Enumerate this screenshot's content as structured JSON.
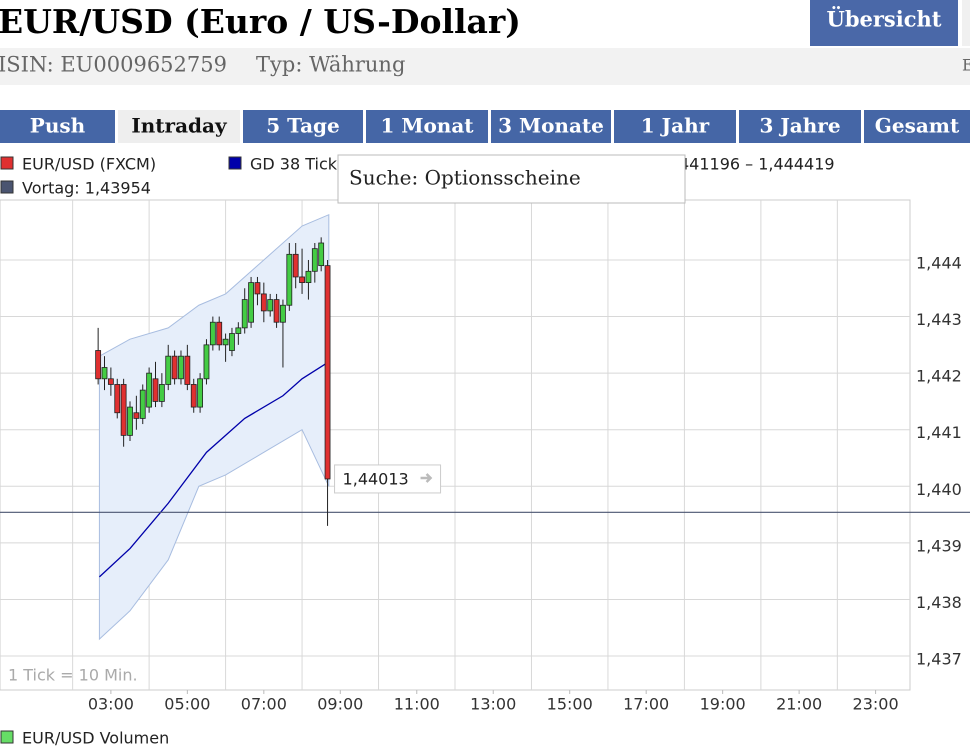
{
  "header": {
    "title": "EUR/USD (Euro / US-Dollar)",
    "button": "Übersicht",
    "isin": "ISIN: EU0009652759",
    "typ": "Typ: Währung",
    "cut": "E"
  },
  "tabs": [
    "Push",
    "Intraday",
    "5 Tage",
    "1 Monat",
    "3 Monate",
    "1 Jahr",
    "3 Jahre",
    "Gesamt"
  ],
  "active_tab": 1,
  "tooltip": "Suche: Optionsscheine",
  "chart_data": {
    "type": "candlestick",
    "series": [
      {
        "name": "EUR/USD (FXCM)",
        "color": "#e03030",
        "up_color": "#44cc44",
        "x": [
          2.6667,
          2.8333,
          3.0,
          3.1667,
          3.3333,
          3.5,
          3.6667,
          3.8333,
          4.0,
          4.1667,
          4.3333,
          4.5,
          4.6667,
          4.8333,
          5.0,
          5.1667,
          5.3333,
          5.5,
          5.6667,
          5.8333,
          6.0,
          6.1667,
          6.3333,
          6.5,
          6.6667,
          6.8333,
          7.0,
          7.1667,
          7.3333,
          7.5,
          7.6667,
          7.8333,
          8.0,
          8.1667,
          8.3333,
          8.5,
          8.6667
        ],
        "open": [
          1.4424,
          1.4419,
          1.4419,
          1.4418,
          1.4418,
          1.4409,
          1.4413,
          1.4412,
          1.4414,
          1.4419,
          1.4415,
          1.4418,
          1.4423,
          1.4419,
          1.4423,
          1.4418,
          1.4414,
          1.4419,
          1.4425,
          1.4429,
          1.4425,
          1.4424,
          1.4427,
          1.4428,
          1.4429,
          1.4436,
          1.4434,
          1.4431,
          1.4433,
          1.4429,
          1.4432,
          1.4441,
          1.4437,
          1.4436,
          1.4438,
          1.4439,
          1.4439
        ],
        "high": [
          1.4428,
          1.4423,
          1.4421,
          1.4419,
          1.4419,
          1.4415,
          1.4416,
          1.4418,
          1.4421,
          1.4422,
          1.442,
          1.4425,
          1.4424,
          1.4424,
          1.4425,
          1.4419,
          1.442,
          1.4426,
          1.443,
          1.443,
          1.4427,
          1.4428,
          1.4429,
          1.4435,
          1.4437,
          1.4437,
          1.4436,
          1.4434,
          1.4434,
          1.4433,
          1.4443,
          1.4443,
          1.4442,
          1.444,
          1.4443,
          1.4444,
          1.444
        ],
        "low": [
          1.4418,
          1.4417,
          1.4416,
          1.4412,
          1.4407,
          1.4408,
          1.441,
          1.4411,
          1.4413,
          1.4414,
          1.4414,
          1.4417,
          1.4418,
          1.4418,
          1.4417,
          1.4413,
          1.4413,
          1.4418,
          1.4424,
          1.4424,
          1.4422,
          1.4423,
          1.4425,
          1.4427,
          1.4428,
          1.4432,
          1.4429,
          1.443,
          1.4428,
          1.4421,
          1.4431,
          1.4435,
          1.4434,
          1.4433,
          1.4436,
          1.4438,
          1.4393
        ],
        "close": [
          1.4419,
          1.4421,
          1.4418,
          1.4413,
          1.4409,
          1.4414,
          1.4412,
          1.4417,
          1.442,
          1.4415,
          1.4418,
          1.4423,
          1.4419,
          1.4423,
          1.4418,
          1.4414,
          1.4419,
          1.4425,
          1.4429,
          1.4425,
          1.4426,
          1.4427,
          1.4428,
          1.4433,
          1.4436,
          1.4434,
          1.4431,
          1.4433,
          1.4429,
          1.4432,
          1.4441,
          1.4437,
          1.4436,
          1.4438,
          1.4442,
          1.4443,
          1.44013
        ]
      }
    ],
    "ma": {
      "name": "GD 38 Tick",
      "color": "#0000aa",
      "x": [
        2.7,
        3.5,
        4.5,
        5.5,
        6.5,
        7.5,
        8.0,
        8.7
      ],
      "values": [
        1.4384,
        1.4389,
        1.4397,
        1.4406,
        1.4412,
        1.4416,
        1.4419,
        1.4422
      ]
    },
    "band": {
      "color": "#e6eefa",
      "x": [
        2.7,
        3.5,
        4.5,
        5.3,
        6.0,
        7.0,
        8.0,
        8.7
      ],
      "upper": [
        1.4423,
        1.4426,
        1.4428,
        1.4432,
        1.4434,
        1.444,
        1.4446,
        1.4448
      ],
      "lower": [
        1.4373,
        1.4378,
        1.4387,
        1.44,
        1.4402,
        1.4406,
        1.441,
        1.44
      ]
    },
    "reference": {
      "name": "Vortag: 1,43954",
      "value": 1.43954,
      "color": "#4a5470"
    },
    "last": {
      "value": 1.44013,
      "label": "1,44013"
    },
    "range_text": "441196 – 1,444419",
    "note": "1 Tick = 10 Min.",
    "volume_legend": {
      "name": "EUR/USD Volumen",
      "color": "#66dd66"
    },
    "xlim": [
      0.1,
      23.9
    ],
    "ylim": [
      1.4364,
      1.44506
    ],
    "xticks": [
      {
        "value": 3,
        "label": "03:00"
      },
      {
        "value": 5,
        "label": "05:00"
      },
      {
        "value": 7,
        "label": "07:00"
      },
      {
        "value": 9,
        "label": "09:00"
      },
      {
        "value": 11,
        "label": "11:00"
      },
      {
        "value": 13,
        "label": "13:00"
      },
      {
        "value": 15,
        "label": "15:00"
      },
      {
        "value": 17,
        "label": "17:00"
      },
      {
        "value": 19,
        "label": "19:00"
      },
      {
        "value": 21,
        "label": "21:00"
      },
      {
        "value": 23,
        "label": "23:00"
      }
    ],
    "xgrid": [
      2,
      4,
      6,
      8,
      10,
      12,
      14,
      16,
      18,
      20,
      22
    ],
    "yticks": [
      {
        "value": 1.437,
        "label": "1,437"
      },
      {
        "value": 1.438,
        "label": "1,438"
      },
      {
        "value": 1.439,
        "label": "1,439"
      },
      {
        "value": 1.44,
        "label": "1,440"
      },
      {
        "value": 1.441,
        "label": "1,441"
      },
      {
        "value": 1.442,
        "label": "1,442"
      },
      {
        "value": 1.443,
        "label": "1,443"
      },
      {
        "value": 1.444,
        "label": "1,444"
      }
    ],
    "grid": true
  }
}
